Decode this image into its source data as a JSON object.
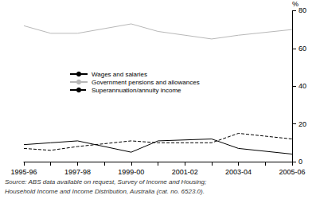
{
  "chart_data": {
    "type": "line",
    "y_label": "%",
    "categories": [
      "1995-96",
      null,
      "1997-98",
      null,
      "1999-00",
      null,
      "2001-02",
      null,
      "2003-04",
      null,
      "2005-06"
    ],
    "series": [
      {
        "name": "Wages and salaries",
        "color": "#000000",
        "line_style": "solid",
        "values": [
          9,
          10,
          11,
          null,
          5,
          11,
          null,
          12,
          7,
          null,
          4
        ]
      },
      {
        "name": "Government pensions and allowances",
        "color": "#b8b8b8",
        "line_style": "solid",
        "values": [
          72,
          68,
          68,
          null,
          73,
          69,
          null,
          65,
          67,
          null,
          70
        ]
      },
      {
        "name": "Superannuation/annuity income",
        "color": "#000000",
        "line_style": "dashed",
        "values": [
          7,
          6,
          8,
          null,
          11,
          10,
          null,
          10,
          15,
          null,
          12
        ]
      }
    ],
    "ylim": [
      0,
      80
    ],
    "yticks": [
      0,
      20,
      40,
      60,
      80
    ],
    "grid": false,
    "legend": "upper left",
    "source": [
      "Source: ABS data available on request, Survey of Income and Housing;",
      "Household Income and Income Distribution, Australia (cat. no. 6523.0)."
    ]
  }
}
